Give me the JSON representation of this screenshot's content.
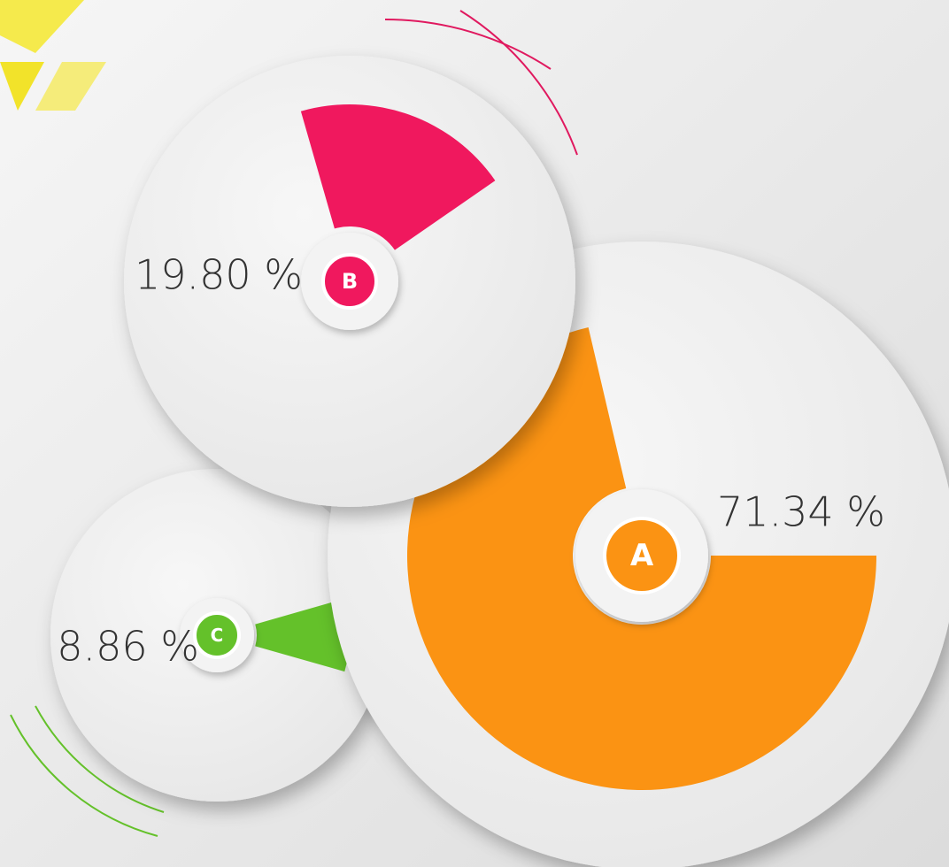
{
  "chart_data": {
    "type": "pie",
    "categories": [
      "A",
      "B",
      "C"
    ],
    "values": [
      71.34,
      19.8,
      8.86
    ],
    "value_labels": [
      "71.34 %",
      "19.80 %",
      "8.86 %"
    ],
    "colors": [
      "#fb9313",
      "#f0185e",
      "#64c12a"
    ]
  }
}
